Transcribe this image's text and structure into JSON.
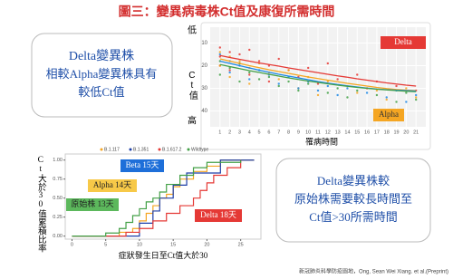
{
  "title": "圖三：變異病毒株Ct值及康復所需時間",
  "left_box": [
    "Delta變異株",
    "相較Alpha變異株具有",
    "較低Ct值"
  ],
  "right_box": [
    "Delta變異株較",
    "原始株需要較長時間至",
    "Ct值>30所需時間"
  ],
  "footnote": "新冠肺炎科學防疫園地，Ong, Sean Wei Xiang. et al.(Preprint)",
  "chart_data": [
    {
      "type": "scatter",
      "y_top": "低",
      "y_label": "Ct值",
      "y_bottom": "高",
      "x_label": "罹病時間",
      "xlim": [
        0,
        22
      ],
      "xticks": [
        1,
        2,
        3,
        4,
        5,
        6,
        7,
        8,
        9,
        10,
        11,
        12,
        13,
        14,
        15,
        16,
        17,
        18,
        19,
        20,
        21
      ],
      "ylim": [
        3,
        47
      ],
      "yticks": [
        10,
        20,
        30,
        40
      ],
      "y_inverted": true,
      "grid": true,
      "annotations": [
        {
          "text": "Delta",
          "color": "#e53935"
        },
        {
          "text": "Alpha",
          "color": "#f5a623"
        }
      ],
      "series": [
        {
          "color": "#e53935",
          "x": [
            1,
            1,
            1,
            2,
            2,
            3,
            3,
            4,
            4,
            5,
            6,
            6,
            7,
            8,
            9,
            10,
            11,
            12,
            13,
            15,
            16,
            17,
            19,
            21
          ],
          "values": [
            12,
            16,
            20,
            14,
            22,
            15,
            19,
            13,
            24,
            18,
            20,
            27,
            17,
            22,
            25,
            21,
            28,
            19,
            26,
            24,
            30,
            27,
            29,
            31
          ]
        },
        {
          "color": "#f5a623",
          "x": [
            1,
            1,
            2,
            2,
            3,
            4,
            4,
            5,
            6,
            7,
            8,
            9,
            10,
            11,
            12,
            14,
            15,
            17,
            18,
            20,
            21
          ],
          "values": [
            14,
            20,
            16,
            25,
            18,
            21,
            28,
            19,
            23,
            26,
            22,
            30,
            25,
            33,
            27,
            29,
            32,
            31,
            35,
            30,
            34
          ]
        },
        {
          "color": "#1e88e5",
          "x": [
            1,
            2,
            2,
            3,
            4,
            5,
            6,
            7,
            8,
            9,
            10,
            11,
            12,
            13,
            14,
            16,
            18,
            19,
            20,
            21
          ],
          "values": [
            15,
            18,
            23,
            20,
            26,
            22,
            24,
            28,
            25,
            30,
            27,
            31,
            29,
            33,
            30,
            32,
            34,
            31,
            36,
            33
          ]
        },
        {
          "color": "#43a047",
          "x": [
            1,
            1,
            2,
            3,
            3,
            4,
            5,
            6,
            7,
            8,
            9,
            10,
            12,
            13,
            14,
            15,
            17,
            19,
            20,
            21
          ],
          "values": [
            18,
            24,
            21,
            19,
            27,
            23,
            26,
            25,
            29,
            27,
            31,
            28,
            32,
            30,
            34,
            31,
            33,
            36,
            32,
            35
          ]
        }
      ],
      "trend_lines": [
        {
          "color": "#e53935",
          "values": [
            15.5,
            16.4,
            17.2,
            18,
            18.8,
            19.5,
            20.2,
            21,
            21.7,
            22.4,
            23.1,
            23.8,
            24.5,
            25.1,
            25.8,
            26.4,
            27,
            27.6,
            28.1,
            28.6,
            29
          ]
        },
        {
          "color": "#f5a623",
          "values": [
            17,
            18,
            19,
            20,
            20.9,
            21.8,
            22.6,
            23.4,
            24.2,
            25,
            25.7,
            26.4,
            27.1,
            27.8,
            28.4,
            29,
            29.6,
            30.1,
            30.5,
            30.8,
            31
          ]
        },
        {
          "color": "#1e88e5",
          "values": [
            18,
            19,
            20,
            21,
            22,
            22.9,
            23.8,
            24.6,
            25.4,
            26.2,
            27,
            27.7,
            28.3,
            28.9,
            29.4,
            29.9,
            30.3,
            30.6,
            30.8,
            31,
            31.2
          ]
        },
        {
          "color": "#43a047",
          "values": [
            19.5,
            20.4,
            21.3,
            22.2,
            23,
            23.8,
            24.6,
            25.4,
            26.1,
            26.8,
            27.4,
            28,
            28.6,
            29.1,
            29.6,
            30,
            30.4,
            30.7,
            31,
            31.3,
            31.5
          ]
        }
      ]
    },
    {
      "type": "step",
      "y_label": "Ct大於30值累積比率",
      "x_label": "症狀發生日至Ct值大於30",
      "xlim": [
        -1,
        28
      ],
      "xticks": [
        0,
        5,
        10,
        15,
        20,
        25
      ],
      "ylim": [
        -0.04,
        1.08
      ],
      "yticks": [
        {
          "value": 0,
          "label": "0.00"
        },
        {
          "value": 0.25,
          "label": "0.25"
        },
        {
          "value": 0.5,
          "label": "0.50"
        },
        {
          "value": 0.75,
          "label": "0.75"
        },
        {
          "value": 1,
          "label": "1.00"
        }
      ],
      "annotations": [
        {
          "text": "Beta 15天",
          "color": "#1e6fd9"
        },
        {
          "text": "Alpha 14天",
          "color": "#f7c948"
        },
        {
          "text": "原始株 13天",
          "color": "#5cb85c"
        },
        {
          "text": "Delta 18天",
          "color": "#e53935"
        }
      ],
      "series": [
        {
          "name": "B.1.117",
          "color": "#f5a623",
          "x": [
            0,
            7,
            9,
            10,
            11,
            12,
            13,
            14,
            15,
            16,
            18,
            20,
            22,
            27
          ],
          "values": [
            0,
            0.05,
            0.1,
            0.2,
            0.3,
            0.4,
            0.5,
            0.55,
            0.65,
            0.75,
            0.85,
            0.92,
            1,
            1
          ]
        },
        {
          "name": "B.1.351",
          "color": "#1e3fa8",
          "x": [
            0,
            10,
            12,
            13,
            15,
            17,
            22,
            27
          ],
          "values": [
            0,
            0.17,
            0.33,
            0.5,
            0.67,
            0.83,
            1,
            1
          ]
        },
        {
          "name": "B.1.617.2",
          "color": "#e53935",
          "x": [
            0,
            8,
            10,
            12,
            14,
            16,
            18,
            19,
            20,
            21,
            23,
            25
          ],
          "values": [
            0,
            0.05,
            0.1,
            0.2,
            0.3,
            0.4,
            0.5,
            0.6,
            0.7,
            0.8,
            0.9,
            1
          ]
        },
        {
          "name": "Wildtype",
          "color": "#43a047",
          "x": [
            0,
            5,
            7,
            8,
            9,
            10,
            11,
            12,
            13,
            14,
            16,
            18,
            20,
            25
          ],
          "values": [
            0,
            0.04,
            0.1,
            0.18,
            0.27,
            0.36,
            0.45,
            0.5,
            0.58,
            0.68,
            0.8,
            0.9,
            0.97,
            1
          ]
        }
      ]
    }
  ]
}
